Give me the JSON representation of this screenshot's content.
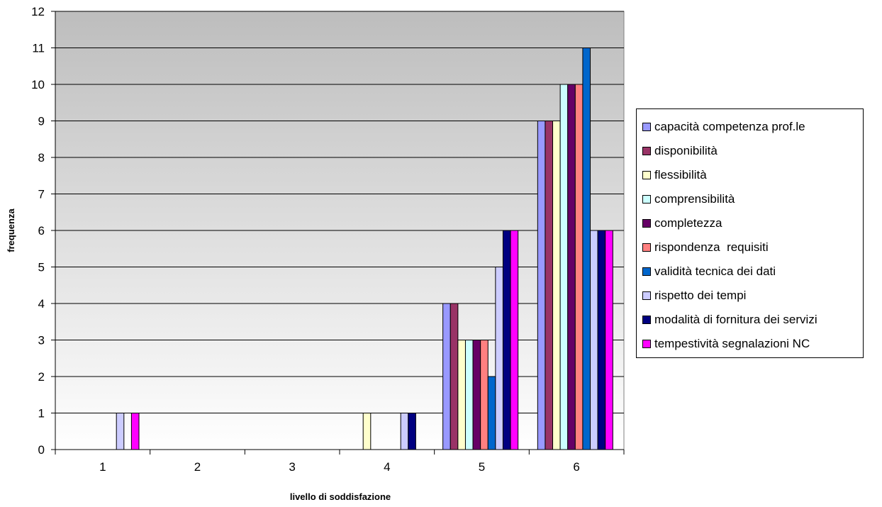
{
  "chart_data": {
    "type": "bar",
    "title": "",
    "xlabel": "livello di soddisfazione",
    "ylabel": "frequenza",
    "categories": [
      "1",
      "2",
      "3",
      "4",
      "5",
      "6"
    ],
    "ylim": [
      0,
      12
    ],
    "yticks": [
      "0",
      "1",
      "2",
      "3",
      "4",
      "5",
      "6",
      "7",
      "8",
      "9",
      "10",
      "11",
      "12"
    ],
    "grid": true,
    "legend_position": "right",
    "series": [
      {
        "name": "capacità competenza prof.le",
        "color": "#9999ff",
        "values": [
          0,
          0,
          0,
          0,
          4,
          9
        ]
      },
      {
        "name": "disponibilità",
        "color": "#993366",
        "values": [
          0,
          0,
          0,
          0,
          4,
          9
        ]
      },
      {
        "name": "flessibilità",
        "color": "#ffffcc",
        "values": [
          0,
          0,
          0,
          1,
          3,
          9
        ]
      },
      {
        "name": "comprensibilità",
        "color": "#ccffff",
        "values": [
          0,
          0,
          0,
          0,
          3,
          10
        ]
      },
      {
        "name": "completezza",
        "color": "#660066",
        "values": [
          0,
          0,
          0,
          0,
          3,
          10
        ]
      },
      {
        "name": "rispondenza  requisiti",
        "color": "#ff8080",
        "values": [
          0,
          0,
          0,
          0,
          3,
          10
        ]
      },
      {
        "name": "validità tecnica dei dati",
        "color": "#0066cc",
        "values": [
          0,
          0,
          0,
          0,
          2,
          11
        ]
      },
      {
        "name": "rispetto dei tempi",
        "color": "#ccccff",
        "values": [
          1,
          0,
          0,
          1,
          5,
          6
        ]
      },
      {
        "name": "modalità di fornitura dei servizi",
        "color": "#000080",
        "values": [
          0,
          0,
          0,
          1,
          6,
          6
        ]
      },
      {
        "name": "tempestività segnalazioni NC",
        "color": "#ff00ff",
        "values": [
          1,
          0,
          0,
          0,
          6,
          6
        ]
      }
    ]
  }
}
